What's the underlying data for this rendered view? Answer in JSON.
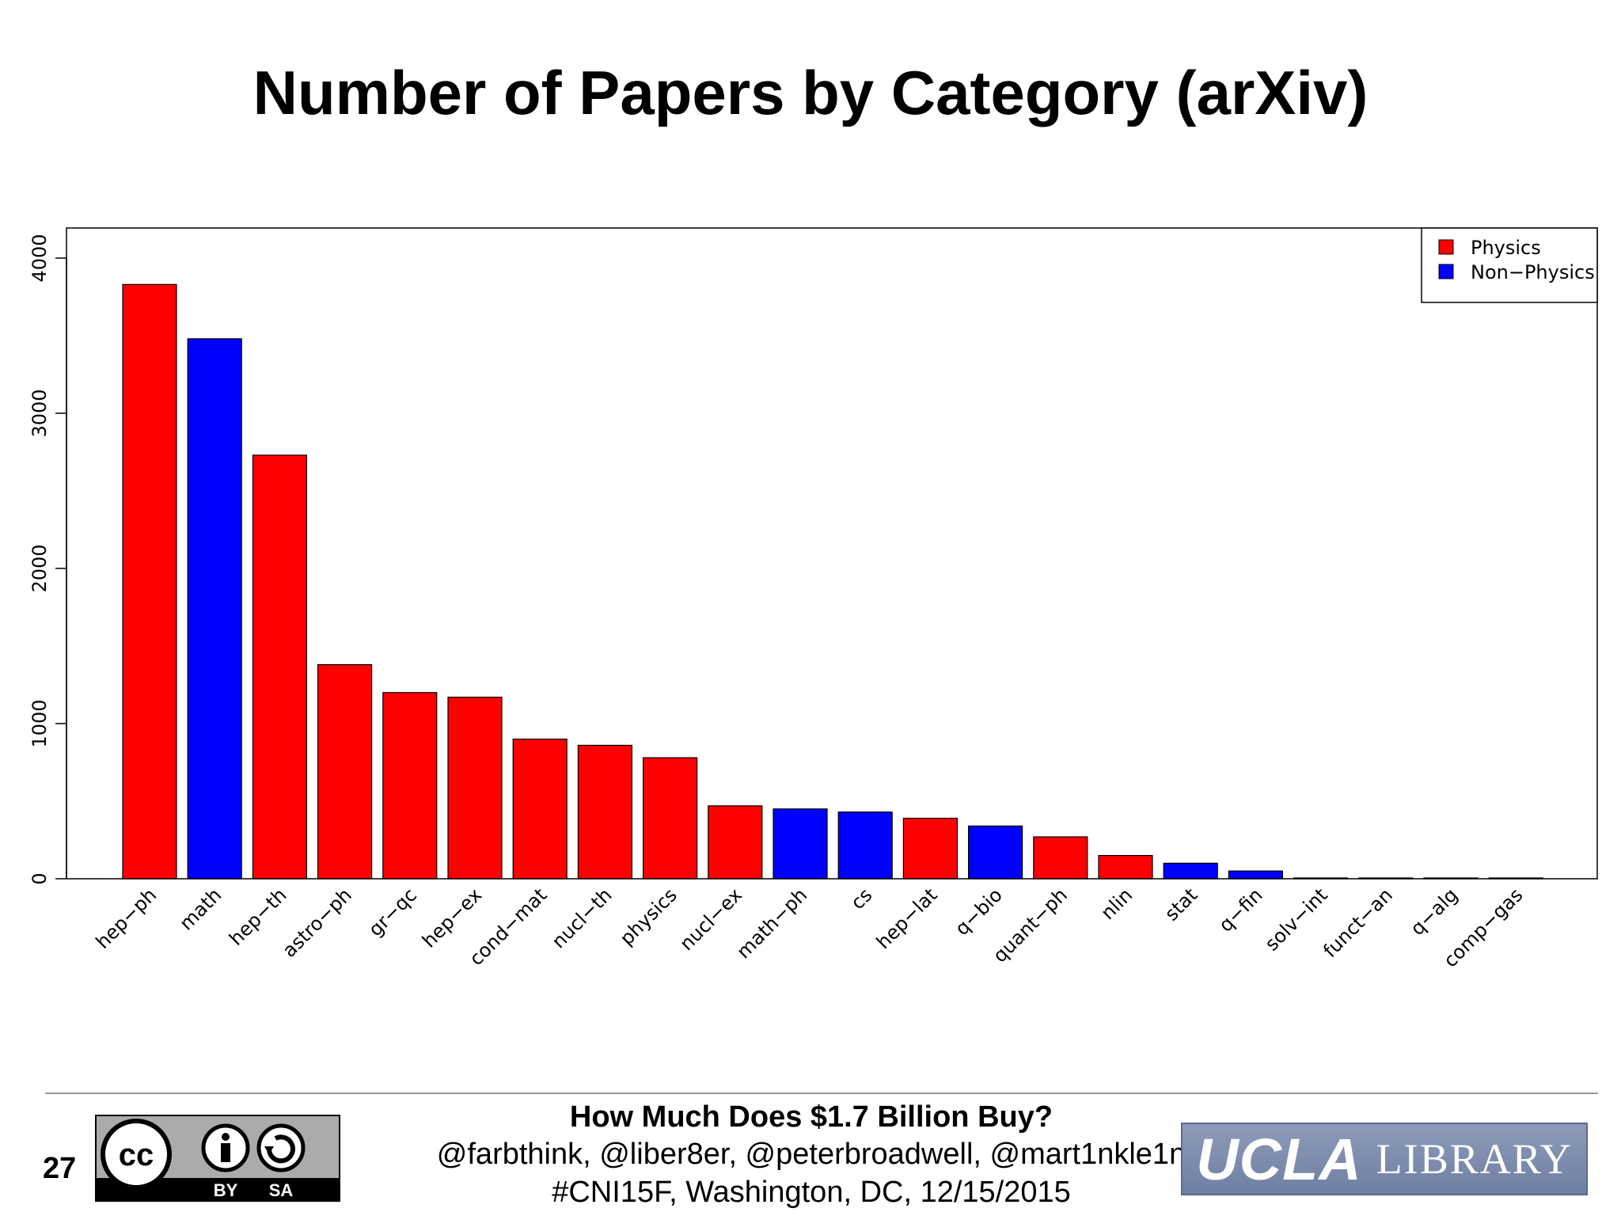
{
  "slide": {
    "title": "Number of Papers by Category (arXiv)",
    "number": "27"
  },
  "colors": {
    "physics": "#ff0000",
    "non_physics": "#0000ff"
  },
  "chart_data": {
    "type": "bar",
    "title": "",
    "xlabel": "",
    "ylabel": "",
    "ylim": [
      0,
      4200
    ],
    "yticks": [
      0,
      1000,
      2000,
      3000,
      4000
    ],
    "grid": false,
    "legend_position": "top-right",
    "legend": [
      {
        "label": "Physics",
        "color": "#ff0000"
      },
      {
        "label": "Non−Physics",
        "color": "#0000ff"
      }
    ],
    "categories": [
      "hep−ph",
      "math",
      "hep−th",
      "astro−ph",
      "gr−qc",
      "hep−ex",
      "cond−mat",
      "nucl−th",
      "physics",
      "nucl−ex",
      "math−ph",
      "cs",
      "hep−lat",
      "q−bio",
      "quant−ph",
      "nlin",
      "stat",
      "q−fin",
      "solv−int",
      "funct−an",
      "q−alg",
      "comp−gas"
    ],
    "values": [
      3830,
      3480,
      2730,
      1380,
      1200,
      1170,
      900,
      860,
      780,
      470,
      450,
      430,
      390,
      340,
      270,
      150,
      100,
      50,
      2,
      2,
      2,
      2
    ],
    "group": [
      "Physics",
      "Non−Physics",
      "Physics",
      "Physics",
      "Physics",
      "Physics",
      "Physics",
      "Physics",
      "Physics",
      "Physics",
      "Non−Physics",
      "Non−Physics",
      "Physics",
      "Non−Physics",
      "Physics",
      "Physics",
      "Non−Physics",
      "Non−Physics",
      "Physics",
      "Non−Physics",
      "Non−Physics",
      "Physics"
    ]
  },
  "footer": {
    "title": "How Much Does $1.7 Billion Buy?",
    "authors": "@farbthink, @liber8er, @peterbroadwell, @mart1nkle1n",
    "event": "#CNI15F, Washington, DC, 12/15/2015",
    "license": {
      "cc_mark": "cc",
      "by_label": "BY",
      "sa_label": "SA",
      "icons": [
        "creative-commons-icon",
        "attribution-icon",
        "share-alike-icon"
      ]
    },
    "logo": {
      "ucla": "UCLA",
      "library": "LIBRARY"
    }
  }
}
